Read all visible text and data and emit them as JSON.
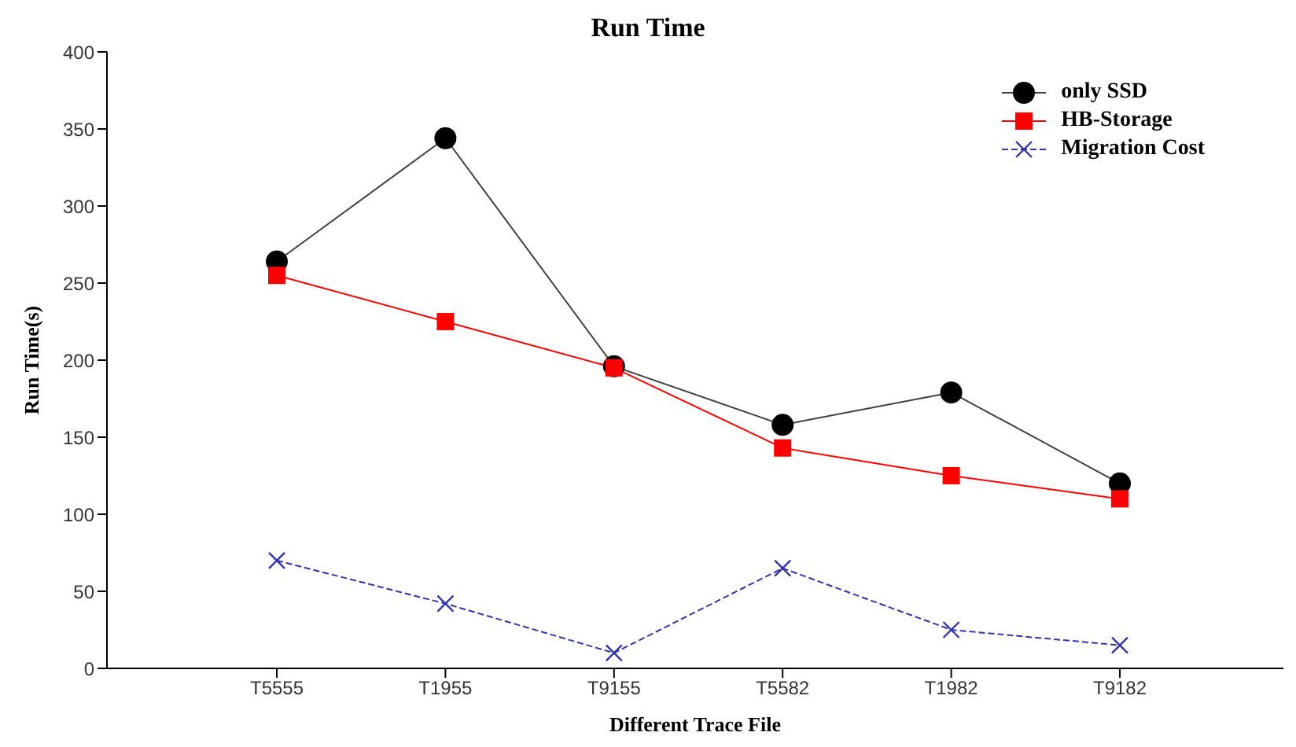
{
  "chart_data": {
    "type": "line",
    "title": "Run Time",
    "xlabel": "Different Trace File",
    "ylabel": "Run Time(s)",
    "categories": [
      "T5555",
      "T1955",
      "T9155",
      "T5582",
      "T1982",
      "T9182"
    ],
    "series": [
      {
        "name": "only SSD",
        "color": "#000000",
        "marker": "circle",
        "line_style": "solid",
        "values": [
          264,
          344,
          196,
          158,
          179,
          120
        ]
      },
      {
        "name": "HB-Storage",
        "color": "#ff0000",
        "marker": "square",
        "line_style": "solid",
        "values": [
          255,
          225,
          195,
          143,
          125,
          110
        ]
      },
      {
        "name": "Migration Cost",
        "color": "#3333aa",
        "marker": "cross",
        "line_style": "dashed",
        "values": [
          70,
          42,
          10,
          65,
          25,
          15
        ]
      }
    ],
    "ylim": [
      0,
      400
    ],
    "yticks": [
      0,
      50,
      100,
      150,
      200,
      250,
      300,
      350,
      400
    ],
    "grid": false,
    "legend": "top right"
  }
}
